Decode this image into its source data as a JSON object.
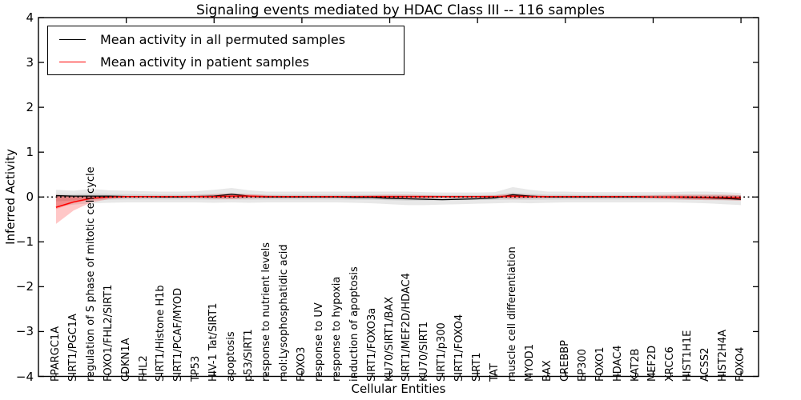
{
  "window": {
    "background": "#ffffff"
  },
  "chart_data": {
    "type": "line",
    "title": "Signaling events mediated by HDAC Class III -- 116 samples",
    "xlabel": "Cellular Entities",
    "ylabel": "Inferred Activity",
    "ylim": [
      -4,
      4
    ],
    "yticks": [
      "4",
      "3",
      "2",
      "1",
      "0",
      "−1",
      "−2",
      "−3",
      "−4"
    ],
    "ytick_values": [
      4,
      3,
      2,
      1,
      0,
      -1,
      -2,
      -3,
      -4
    ],
    "grid": false,
    "zero_line_style": "dotted",
    "legend_position": "upper left",
    "categories": [
      "PPARGC1A",
      "SIRT1/PGC1A",
      "regulation of S phase of mitotic cell cycle",
      "FOXO1/FHL2/SIRT1",
      "CDKN1A",
      "FHL2",
      "SIRT1/Histone H1b",
      "SIRT1/PCAF/MYOD",
      "TP53",
      "HIV-1 Tat/SIRT1",
      "apoptosis",
      "p53/SIRT1",
      "response to nutrient levels",
      "mol:Lysophosphatidic acid",
      "FOXO3",
      "response to UV",
      "response to hypoxia",
      "induction of apoptosis",
      "SIRT1/FOXO3a",
      "KU70/SIRT1/BAX",
      "SIRT1/MEF2D/HDAC4",
      "KU70/SIRT1",
      "SIRT1/p300",
      "SIRT1/FOXO4",
      "SIRT1",
      "TAT",
      "muscle cell differentiation",
      "MYOD1",
      "BAX",
      "CREBBP",
      "EP300",
      "FOXO1",
      "HDAC4",
      "KAT2B",
      "MEF2D",
      "XRCC6",
      "HIST1H1E",
      "ACSS2",
      "HIST2H4A",
      "FOXO4"
    ],
    "series": [
      {
        "name": "Mean activity in all permuted samples",
        "color": "#000000",
        "band_color": "#000000",
        "band_opacity": 0.09,
        "mean": [
          0.03,
          0.02,
          0.02,
          0.02,
          0.01,
          0.01,
          0.0,
          0.0,
          0.01,
          0.02,
          0.06,
          0.02,
          0.0,
          0.0,
          0.0,
          0.0,
          0.0,
          -0.01,
          -0.01,
          -0.03,
          -0.04,
          -0.05,
          -0.06,
          -0.05,
          -0.04,
          -0.02,
          0.05,
          0.02,
          0.0,
          0.0,
          0.0,
          0.0,
          0.0,
          0.0,
          0.0,
          0.0,
          -0.01,
          -0.02,
          -0.03,
          -0.05
        ],
        "upper": [
          0.16,
          0.14,
          0.18,
          0.15,
          0.14,
          0.13,
          0.12,
          0.12,
          0.13,
          0.16,
          0.2,
          0.15,
          0.12,
          0.12,
          0.12,
          0.12,
          0.12,
          0.12,
          0.12,
          0.12,
          0.12,
          0.11,
          0.1,
          0.1,
          0.1,
          0.11,
          0.22,
          0.16,
          0.12,
          0.12,
          0.11,
          0.11,
          0.11,
          0.11,
          0.11,
          0.11,
          0.12,
          0.12,
          0.11,
          0.09
        ],
        "lower": [
          -0.22,
          -0.17,
          -0.14,
          -0.13,
          -0.12,
          -0.12,
          -0.12,
          -0.12,
          -0.12,
          -0.13,
          -0.12,
          -0.13,
          -0.12,
          -0.12,
          -0.12,
          -0.12,
          -0.12,
          -0.13,
          -0.14,
          -0.16,
          -0.18,
          -0.18,
          -0.17,
          -0.16,
          -0.15,
          -0.14,
          -0.13,
          -0.14,
          -0.13,
          -0.12,
          -0.12,
          -0.12,
          -0.12,
          -0.12,
          -0.12,
          -0.12,
          -0.13,
          -0.14,
          -0.16,
          -0.18
        ]
      },
      {
        "name": "Mean activity in patient samples",
        "color": "#ff0000",
        "band_color": "#ff0000",
        "band_opacity": 0.22,
        "mean": [
          -0.23,
          -0.11,
          -0.03,
          0.0,
          0.01,
          0.01,
          0.01,
          0.01,
          0.01,
          0.01,
          0.02,
          0.02,
          0.01,
          0.01,
          0.01,
          0.01,
          0.01,
          0.01,
          0.01,
          0.01,
          0.01,
          0.01,
          0.01,
          0.01,
          0.01,
          0.01,
          0.02,
          0.01,
          0.01,
          0.01,
          0.01,
          0.01,
          0.01,
          0.01,
          0.0,
          0.0,
          0.0,
          -0.01,
          -0.01,
          -0.02
        ],
        "upper": [
          0.05,
          0.02,
          0.03,
          0.03,
          0.03,
          0.03,
          0.03,
          0.03,
          0.04,
          0.06,
          0.08,
          0.06,
          0.04,
          0.03,
          0.03,
          0.03,
          0.03,
          0.03,
          0.04,
          0.05,
          0.05,
          0.04,
          0.03,
          0.03,
          0.03,
          0.04,
          0.07,
          0.05,
          0.03,
          0.03,
          0.03,
          0.03,
          0.03,
          0.03,
          0.04,
          0.05,
          0.05,
          0.05,
          0.05,
          0.04
        ],
        "lower": [
          -0.6,
          -0.3,
          -0.12,
          -0.05,
          -0.02,
          -0.02,
          -0.02,
          -0.02,
          -0.02,
          -0.04,
          -0.05,
          -0.03,
          -0.02,
          -0.02,
          -0.02,
          -0.02,
          -0.02,
          -0.02,
          -0.02,
          -0.03,
          -0.03,
          -0.03,
          -0.02,
          -0.02,
          -0.02,
          -0.02,
          -0.04,
          -0.03,
          -0.02,
          -0.02,
          -0.02,
          -0.02,
          -0.02,
          -0.02,
          -0.03,
          -0.05,
          -0.06,
          -0.07,
          -0.07,
          -0.08
        ]
      }
    ]
  },
  "legend": {
    "entries": [
      {
        "label": "Mean activity in all permuted samples",
        "color": "#000000"
      },
      {
        "label": "Mean activity in patient samples",
        "color": "#ff0000"
      }
    ]
  }
}
